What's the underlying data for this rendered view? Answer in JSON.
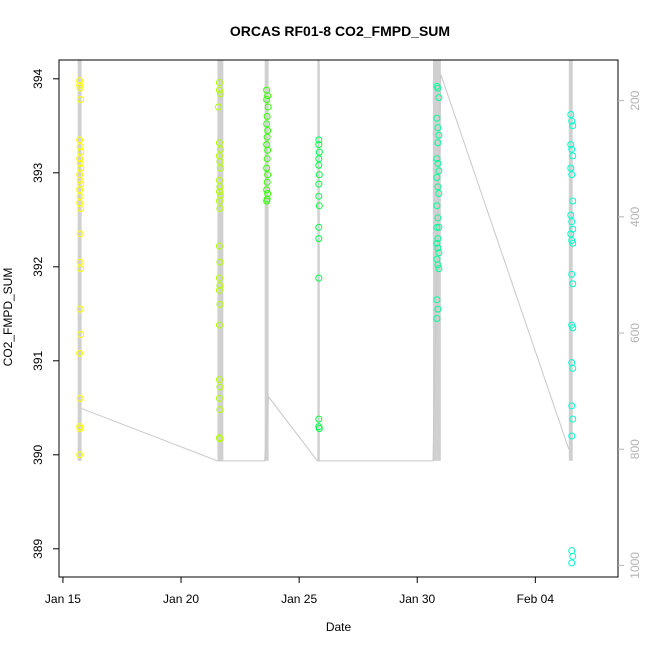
{
  "chart_data": {
    "type": "scatter",
    "title": "ORCAS RF01-8 CO2_FMPD_SUM",
    "xlabel": "Date",
    "ylabel": "CO2_FMPD_SUM",
    "xlim": [
      "2016-01-14T20:00",
      "2016-02-07T12:00"
    ],
    "ylim": [
      388.7,
      394.2
    ],
    "x_ticks": [
      {
        "value": "2016-01-15",
        "label": "Jan 15"
      },
      {
        "value": "2016-01-20",
        "label": "Jan 20"
      },
      {
        "value": "2016-01-25",
        "label": "Jan 25"
      },
      {
        "value": "2016-01-30",
        "label": "Jan 30"
      },
      {
        "value": "2016-02-04",
        "label": "Feb 04"
      }
    ],
    "y_ticks": [
      389,
      390,
      391,
      392,
      393,
      394
    ],
    "y2_ticks": [
      200,
      400,
      600,
      800,
      1000
    ],
    "y2lim": [
      1020,
      130
    ],
    "y2_color": "#b3b3b3",
    "grid": false,
    "series": [
      {
        "color": "#ffff00",
        "points": [
          [
            "2016-01-15T17:00",
            393.98
          ],
          [
            "2016-01-15T17:00",
            393.93
          ],
          [
            "2016-01-15T17:30",
            393.9
          ],
          [
            "2016-01-15T18:00",
            393.78
          ],
          [
            "2016-01-15T17:00",
            393.35
          ],
          [
            "2016-01-15T17:30",
            393.28
          ],
          [
            "2016-01-15T18:00",
            393.22
          ],
          [
            "2016-01-15T17:00",
            393.15
          ],
          [
            "2016-01-15T17:30",
            393.1
          ],
          [
            "2016-01-15T18:00",
            393.05
          ],
          [
            "2016-01-15T17:00",
            392.98
          ],
          [
            "2016-01-15T17:30",
            392.92
          ],
          [
            "2016-01-15T18:00",
            392.88
          ],
          [
            "2016-01-15T17:00",
            392.82
          ],
          [
            "2016-01-15T17:30",
            392.75
          ],
          [
            "2016-01-15T17:00",
            392.68
          ],
          [
            "2016-01-15T18:00",
            392.62
          ],
          [
            "2016-01-15T17:30",
            392.35
          ],
          [
            "2016-01-15T17:30",
            392.05
          ],
          [
            "2016-01-15T18:00",
            391.98
          ],
          [
            "2016-01-15T17:30",
            391.55
          ],
          [
            "2016-01-15T18:00",
            391.28
          ],
          [
            "2016-01-15T17:00",
            391.08
          ],
          [
            "2016-01-15T17:30",
            390.6
          ],
          [
            "2016-01-15T17:00",
            390.3
          ],
          [
            "2016-01-15T17:30",
            390.28
          ],
          [
            "2016-01-15T17:00",
            390.0
          ]
        ]
      },
      {
        "color": "#b3ff00",
        "points": [
          [
            "2016-01-21T15:00",
            393.96
          ],
          [
            "2016-01-21T15:00",
            393.88
          ],
          [
            "2016-01-21T16:00",
            393.84
          ],
          [
            "2016-01-21T14:00",
            393.7
          ],
          [
            "2016-01-21T15:00",
            393.32
          ],
          [
            "2016-01-21T16:00",
            393.25
          ],
          [
            "2016-01-21T15:00",
            393.18
          ],
          [
            "2016-01-21T15:30",
            393.12
          ],
          [
            "2016-01-21T16:00",
            393.05
          ],
          [
            "2016-01-21T15:00",
            392.92
          ],
          [
            "2016-01-21T15:30",
            392.85
          ],
          [
            "2016-01-21T15:00",
            392.8
          ],
          [
            "2016-01-21T16:00",
            392.76
          ],
          [
            "2016-01-21T15:00",
            392.7
          ],
          [
            "2016-01-21T15:30",
            392.62
          ],
          [
            "2016-01-21T15:00",
            392.22
          ],
          [
            "2016-01-21T15:30",
            392.05
          ],
          [
            "2016-01-21T15:00",
            391.88
          ],
          [
            "2016-01-21T15:30",
            391.8
          ],
          [
            "2016-01-21T15:00",
            391.75
          ],
          [
            "2016-01-21T15:30",
            391.6
          ],
          [
            "2016-01-21T15:00",
            391.38
          ],
          [
            "2016-01-21T15:00",
            390.8
          ],
          [
            "2016-01-21T15:30",
            390.72
          ],
          [
            "2016-01-21T15:00",
            390.6
          ],
          [
            "2016-01-21T15:30",
            390.48
          ],
          [
            "2016-01-21T15:00",
            390.18
          ],
          [
            "2016-01-21T15:30",
            390.17
          ]
        ]
      },
      {
        "color": "#33ff00",
        "points": [
          [
            "2016-01-23T15:00",
            393.88
          ],
          [
            "2016-01-23T16:00",
            393.82
          ],
          [
            "2016-01-23T15:00",
            393.78
          ],
          [
            "2016-01-23T16:30",
            393.7
          ],
          [
            "2016-01-23T15:30",
            393.6
          ],
          [
            "2016-01-23T15:00",
            393.52
          ],
          [
            "2016-01-23T16:00",
            393.45
          ],
          [
            "2016-01-23T15:30",
            393.38
          ],
          [
            "2016-01-23T15:00",
            393.3
          ],
          [
            "2016-01-23T16:00",
            393.24
          ],
          [
            "2016-01-23T15:30",
            393.15
          ],
          [
            "2016-01-23T15:00",
            393.05
          ],
          [
            "2016-01-23T16:00",
            392.98
          ],
          [
            "2016-01-23T15:30",
            392.9
          ],
          [
            "2016-01-23T15:00",
            392.82
          ],
          [
            "2016-01-23T16:00",
            392.78
          ],
          [
            "2016-01-23T15:30",
            392.72
          ],
          [
            "2016-01-23T15:00",
            392.7
          ]
        ]
      },
      {
        "color": "#00ff44",
        "points": [
          [
            "2016-01-25T20:00",
            393.35
          ],
          [
            "2016-01-25T20:00",
            393.3
          ],
          [
            "2016-01-25T20:30",
            393.22
          ],
          [
            "2016-01-25T20:00",
            393.15
          ],
          [
            "2016-01-25T20:00",
            393.08
          ],
          [
            "2016-01-25T20:30",
            392.98
          ],
          [
            "2016-01-25T20:00",
            392.88
          ],
          [
            "2016-01-25T20:00",
            392.75
          ],
          [
            "2016-01-25T20:30",
            392.65
          ],
          [
            "2016-01-25T20:00",
            392.42
          ],
          [
            "2016-01-25T20:00",
            392.3
          ],
          [
            "2016-01-25T20:00",
            391.88
          ],
          [
            "2016-01-25T20:00",
            390.38
          ],
          [
            "2016-01-25T20:00",
            390.3
          ],
          [
            "2016-01-25T20:30",
            390.28
          ]
        ]
      },
      {
        "color": "#00ff99",
        "points": [
          [
            "2016-01-30T20:00",
            393.92
          ],
          [
            "2016-01-30T21:00",
            393.9
          ],
          [
            "2016-01-30T22:00",
            393.8
          ],
          [
            "2016-01-30T20:00",
            393.58
          ],
          [
            "2016-01-30T21:00",
            393.48
          ],
          [
            "2016-01-30T22:00",
            393.4
          ],
          [
            "2016-01-30T21:00",
            393.32
          ],
          [
            "2016-01-30T20:00",
            393.15
          ],
          [
            "2016-01-30T21:00",
            393.1
          ],
          [
            "2016-01-30T22:00",
            393.02
          ],
          [
            "2016-01-30T20:00",
            392.95
          ],
          [
            "2016-01-30T21:00",
            392.85
          ],
          [
            "2016-01-30T22:00",
            392.78
          ],
          [
            "2016-01-30T20:00",
            392.65
          ],
          [
            "2016-01-30T21:00",
            392.52
          ],
          [
            "2016-01-30T22:00",
            392.42
          ],
          [
            "2016-01-30T20:00",
            392.42
          ],
          [
            "2016-01-30T21:00",
            392.3
          ],
          [
            "2016-01-30T20:00",
            392.25
          ],
          [
            "2016-01-30T21:00",
            392.2
          ],
          [
            "2016-01-30T22:00",
            392.15
          ],
          [
            "2016-01-30T20:00",
            392.08
          ],
          [
            "2016-01-30T21:00",
            392.02
          ],
          [
            "2016-01-30T22:00",
            391.98
          ],
          [
            "2016-01-30T20:00",
            391.65
          ],
          [
            "2016-01-30T21:00",
            391.55
          ],
          [
            "2016-01-30T20:00",
            391.45
          ]
        ]
      },
      {
        "color": "#00ffcc",
        "points": [
          [
            "2016-02-05T12:00",
            393.62
          ],
          [
            "2016-02-05T13:00",
            393.55
          ],
          [
            "2016-02-05T14:00",
            393.5
          ],
          [
            "2016-02-05T12:00",
            393.3
          ],
          [
            "2016-02-05T13:00",
            393.25
          ],
          [
            "2016-02-05T14:00",
            393.18
          ],
          [
            "2016-02-05T12:00",
            393.05
          ],
          [
            "2016-02-05T13:00",
            392.98
          ],
          [
            "2016-02-05T14:00",
            392.7
          ],
          [
            "2016-02-05T12:00",
            392.55
          ],
          [
            "2016-02-05T13:00",
            392.48
          ],
          [
            "2016-02-05T14:00",
            392.4
          ],
          [
            "2016-02-05T12:00",
            392.35
          ],
          [
            "2016-02-05T13:00",
            392.28
          ],
          [
            "2016-02-05T14:00",
            392.25
          ],
          [
            "2016-02-05T13:00",
            391.92
          ],
          [
            "2016-02-05T14:00",
            391.82
          ],
          [
            "2016-02-05T13:00",
            391.38
          ],
          [
            "2016-02-05T14:00",
            391.35
          ],
          [
            "2016-02-05T13:00",
            390.98
          ],
          [
            "2016-02-05T14:00",
            390.92
          ],
          [
            "2016-02-05T13:00",
            390.52
          ],
          [
            "2016-02-05T14:00",
            390.38
          ],
          [
            "2016-02-05T13:00",
            390.2
          ],
          [
            "2016-02-05T13:00",
            388.98
          ],
          [
            "2016-02-05T14:00",
            388.92
          ],
          [
            "2016-02-05T13:00",
            388.85
          ]
        ]
      }
    ],
    "trace": {
      "color": "#c8c8c8",
      "axis": "y2",
      "bands": [
        {
          "start": "2016-01-15T15:00",
          "end": "2016-01-15T19:00"
        },
        {
          "start": "2016-01-21T13:00",
          "end": "2016-01-21T19:00"
        },
        {
          "start": "2016-01-23T13:00",
          "end": "2016-01-23T17:00"
        },
        {
          "start": "2016-01-25T18:30",
          "end": "2016-01-25T21:00"
        },
        {
          "start": "2016-01-30T16:00",
          "end": "2016-01-31T00:00"
        },
        {
          "start": "2016-02-05T10:00",
          "end": "2016-02-05T14:00"
        }
      ],
      "points": [
        [
          "2016-01-15T19:00",
          730
        ],
        [
          "2016-01-21T13:00",
          820
        ],
        [
          "2016-01-21T19:00",
          820
        ],
        [
          "2016-01-23T13:00",
          820
        ],
        [
          "2016-01-23T17:00",
          710
        ],
        [
          "2016-01-25T18:30",
          820
        ],
        [
          "2016-01-30T16:00",
          820
        ],
        [
          "2016-01-31T00:00",
          155
        ],
        [
          "2016-02-05T10:00",
          800
        ]
      ]
    }
  }
}
